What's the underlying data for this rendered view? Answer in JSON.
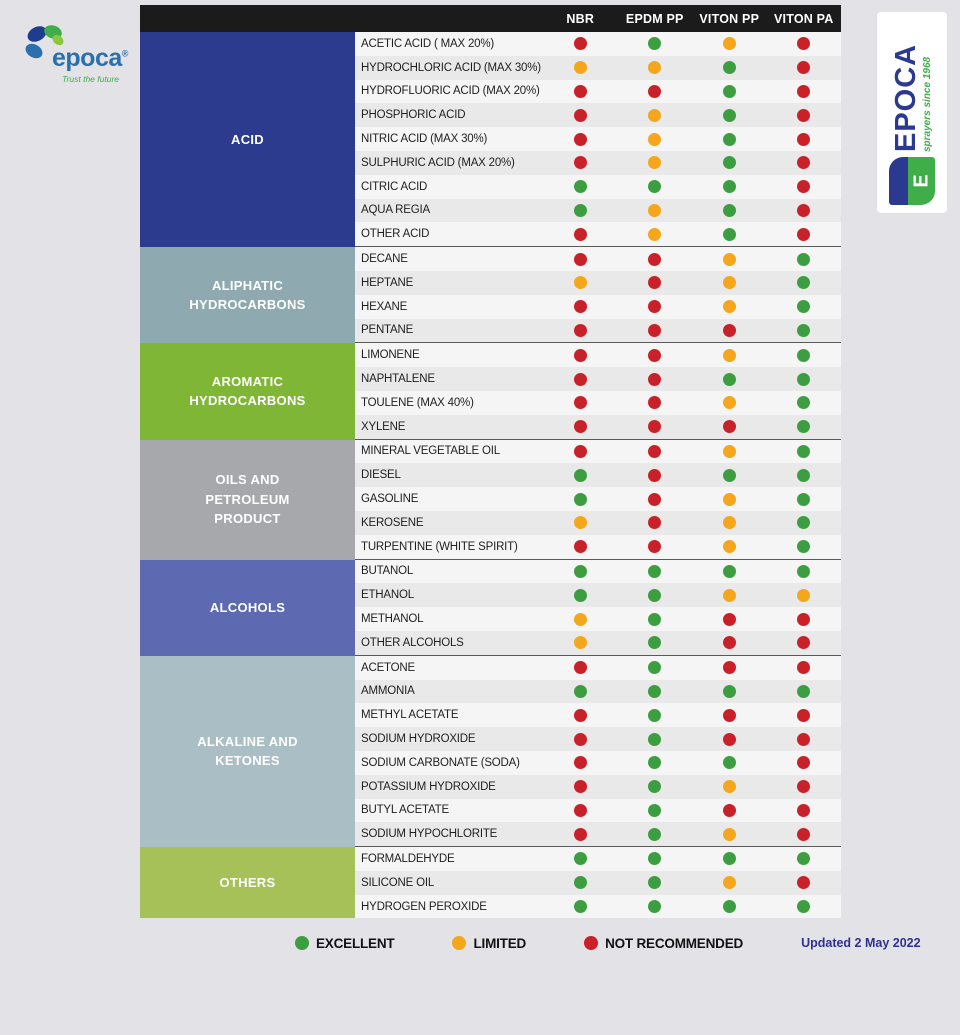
{
  "brand_left": {
    "name": "epoca",
    "reg": "®",
    "tagline": "Trust the future"
  },
  "brand_right": {
    "name": "EPOCA",
    "tagline": "sprayers since 1968",
    "monogram": "E"
  },
  "rating_colors": {
    "E": "#3d9e41",
    "L": "#f4a71d",
    "N": "#c92129"
  },
  "table": {
    "columns": [
      "NBR",
      "EPDM PP",
      "VITON PP",
      "VITON PA"
    ],
    "groups": [
      {
        "label": "ACID",
        "color": "#2c3b8e",
        "rows": [
          {
            "chemical": "ACETIC ACID ( MAX 20%)",
            "ratings": [
              "N",
              "E",
              "L",
              "N"
            ]
          },
          {
            "chemical": "HYDROCHLORIC ACID (MAX 30%)",
            "ratings": [
              "L",
              "L",
              "E",
              "N"
            ]
          },
          {
            "chemical": "HYDROFLUORIC ACID (MAX 20%)",
            "ratings": [
              "N",
              "N",
              "E",
              "N"
            ]
          },
          {
            "chemical": "PHOSPHORIC ACID",
            "ratings": [
              "N",
              "L",
              "E",
              "N"
            ]
          },
          {
            "chemical": "NITRIC ACID (MAX 30%)",
            "ratings": [
              "N",
              "L",
              "E",
              "N"
            ]
          },
          {
            "chemical": "SULPHURIC ACID (MAX 20%)",
            "ratings": [
              "N",
              "L",
              "E",
              "N"
            ]
          },
          {
            "chemical": "CITRIC ACID",
            "ratings": [
              "E",
              "E",
              "E",
              "N"
            ]
          },
          {
            "chemical": "AQUA REGIA",
            "ratings": [
              "E",
              "L",
              "E",
              "N"
            ]
          },
          {
            "chemical": "OTHER ACID",
            "ratings": [
              "N",
              "L",
              "E",
              "N"
            ]
          }
        ]
      },
      {
        "label": "ALIPHATIC\nHYDROCARBONS",
        "color": "#8ea9af",
        "rows": [
          {
            "chemical": "DECANE",
            "ratings": [
              "N",
              "N",
              "L",
              "E"
            ]
          },
          {
            "chemical": "HEPTANE",
            "ratings": [
              "L",
              "N",
              "L",
              "E"
            ]
          },
          {
            "chemical": "HEXANE",
            "ratings": [
              "N",
              "N",
              "L",
              "E"
            ]
          },
          {
            "chemical": "PENTANE",
            "ratings": [
              "N",
              "N",
              "N",
              "E"
            ]
          }
        ]
      },
      {
        "label": "AROMATIC\nHYDROCARBONS",
        "color": "#7fb635",
        "rows": [
          {
            "chemical": "LIMONENE",
            "ratings": [
              "N",
              "N",
              "L",
              "E"
            ]
          },
          {
            "chemical": "NAPHTALENE",
            "ratings": [
              "N",
              "N",
              "E",
              "E"
            ]
          },
          {
            "chemical": "TOULENE (MAX 40%)",
            "ratings": [
              "N",
              "N",
              "L",
              "E"
            ]
          },
          {
            "chemical": "XYLENE",
            "ratings": [
              "N",
              "N",
              "N",
              "E"
            ]
          }
        ]
      },
      {
        "label": "OILS AND\nPETROLEUM\nPRODUCT",
        "color": "#a6a8ab",
        "rows": [
          {
            "chemical": "MINERAL VEGETABLE OIL",
            "ratings": [
              "N",
              "N",
              "L",
              "E"
            ]
          },
          {
            "chemical": "DIESEL",
            "ratings": [
              "E",
              "N",
              "E",
              "E"
            ]
          },
          {
            "chemical": "GASOLINE",
            "ratings": [
              "E",
              "N",
              "L",
              "E"
            ]
          },
          {
            "chemical": "KEROSENE",
            "ratings": [
              "L",
              "N",
              "L",
              "E"
            ]
          },
          {
            "chemical": "TURPENTINE (WHITE SPIRIT)",
            "ratings": [
              "N",
              "N",
              "L",
              "E"
            ]
          }
        ]
      },
      {
        "label": "ALCOHOLS",
        "color": "#5d69b0",
        "rows": [
          {
            "chemical": "BUTANOL",
            "ratings": [
              "E",
              "E",
              "E",
              "E"
            ]
          },
          {
            "chemical": "ETHANOL",
            "ratings": [
              "E",
              "E",
              "L",
              "L"
            ]
          },
          {
            "chemical": "METHANOL",
            "ratings": [
              "L",
              "E",
              "N",
              "N"
            ]
          },
          {
            "chemical": "OTHER ALCOHOLS",
            "ratings": [
              "L",
              "E",
              "N",
              "N"
            ]
          }
        ]
      },
      {
        "label": "ALKALINE AND\nKETONES",
        "color": "#aabec6",
        "rows": [
          {
            "chemical": "ACETONE",
            "ratings": [
              "N",
              "E",
              "N",
              "N"
            ]
          },
          {
            "chemical": "AMMONIA",
            "ratings": [
              "E",
              "E",
              "E",
              "E"
            ]
          },
          {
            "chemical": "METHYL ACETATE",
            "ratings": [
              "N",
              "E",
              "N",
              "N"
            ]
          },
          {
            "chemical": "SODIUM HYDROXIDE",
            "ratings": [
              "N",
              "E",
              "N",
              "N"
            ]
          },
          {
            "chemical": "SODIUM CARBONATE (SODA)",
            "ratings": [
              "N",
              "E",
              "E",
              "N"
            ]
          },
          {
            "chemical": "POTASSIUM HYDROXIDE",
            "ratings": [
              "N",
              "E",
              "L",
              "N"
            ]
          },
          {
            "chemical": "BUTYL ACETATE",
            "ratings": [
              "N",
              "E",
              "N",
              "N"
            ]
          },
          {
            "chemical": "SODIUM HYPOCHLORITE",
            "ratings": [
              "N",
              "E",
              "L",
              "N"
            ]
          }
        ]
      },
      {
        "label": "OTHERS",
        "color": "#a7c159",
        "rows": [
          {
            "chemical": "FORMALDEHYDE",
            "ratings": [
              "E",
              "E",
              "E",
              "E"
            ]
          },
          {
            "chemical": "SILICONE OIL",
            "ratings": [
              "E",
              "E",
              "L",
              "N"
            ]
          },
          {
            "chemical": "HYDROGEN PEROXIDE",
            "ratings": [
              "E",
              "E",
              "E",
              "E"
            ]
          }
        ]
      }
    ]
  },
  "legend": {
    "items": [
      {
        "code": "E",
        "label": "EXCELLENT"
      },
      {
        "code": "L",
        "label": "LIMITED"
      },
      {
        "code": "N",
        "label": "NOT RECOMMENDED"
      }
    ],
    "updated": "Updated 2 May 2022"
  }
}
